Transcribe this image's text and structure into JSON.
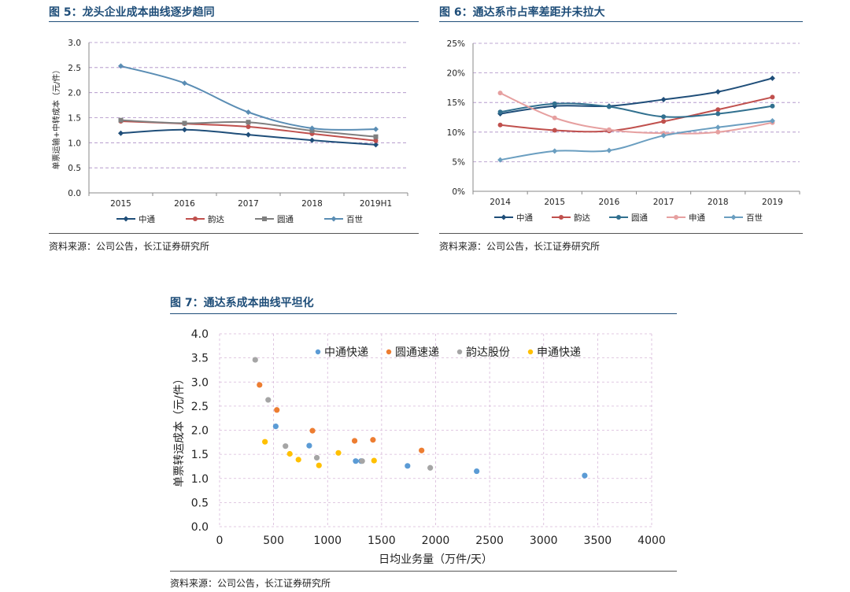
{
  "chart_data": [
    {
      "type": "line",
      "title": "图 5：龙头企业成本曲线逐步趋同",
      "ylabel": "单票运输+中转成本（元/件）",
      "categories": [
        "2015",
        "2016",
        "2017",
        "2018",
        "2019H1"
      ],
      "ylim": [
        0,
        3.0
      ],
      "yticks": [
        "0.0",
        "0.5",
        "1.0",
        "1.5",
        "2.0",
        "2.5",
        "3.0"
      ],
      "ytick_values": [
        0,
        0.5,
        1.0,
        1.5,
        2.0,
        2.5,
        3.0
      ],
      "legend_position": "bottom",
      "series": [
        {
          "name": "中通",
          "color": "#1f4e79",
          "marker": "diamond",
          "values": [
            1.19,
            1.26,
            1.16,
            1.05,
            0.96
          ]
        },
        {
          "name": "韵达",
          "color": "#c0504d",
          "marker": "circle",
          "values": [
            1.43,
            1.38,
            1.32,
            1.18,
            1.04
          ]
        },
        {
          "name": "圆通",
          "color": "#7f7f7f",
          "marker": "square",
          "values": [
            1.45,
            1.39,
            1.41,
            1.24,
            1.12
          ]
        },
        {
          "name": "百世",
          "color": "#5a8db4",
          "marker": "diamond",
          "values": [
            2.53,
            2.19,
            1.61,
            1.29,
            1.27
          ]
        }
      ],
      "source": "资料来源：公司公告，长江证券研究所"
    },
    {
      "type": "line",
      "title": "图 6：通达系市占率差距并未拉大",
      "categories": [
        "2014",
        "2015",
        "2016",
        "2017",
        "2018",
        "2019"
      ],
      "ylim": [
        0,
        25
      ],
      "yticks": [
        "0%",
        "5%",
        "10%",
        "15%",
        "20%",
        "25%"
      ],
      "ytick_values": [
        0,
        5,
        10,
        15,
        20,
        25
      ],
      "legend_position": "bottom",
      "series": [
        {
          "name": "中通",
          "color": "#1f4e79",
          "marker": "diamond",
          "values": [
            13.1,
            14.4,
            14.4,
            15.5,
            16.8,
            19.1
          ]
        },
        {
          "name": "韵达",
          "color": "#c0504d",
          "marker": "circle",
          "values": [
            11.2,
            10.3,
            10.2,
            11.8,
            13.8,
            15.9
          ]
        },
        {
          "name": "圆通",
          "color": "#31708f",
          "marker": "circle",
          "values": [
            13.4,
            14.8,
            14.3,
            12.6,
            13.1,
            14.4
          ]
        },
        {
          "name": "申通",
          "color": "#e6a0a0",
          "marker": "circle",
          "values": [
            16.6,
            12.4,
            10.4,
            9.8,
            10.0,
            11.6
          ]
        },
        {
          "name": "百世",
          "color": "#6a9ec0",
          "marker": "diamond",
          "values": [
            5.3,
            6.8,
            6.9,
            9.4,
            10.8,
            11.9
          ]
        }
      ],
      "source": "资料来源：公司公告，长江证券研究所"
    },
    {
      "type": "scatter",
      "title": "图 7：通达系成本曲线平坦化",
      "xlabel": "日均业务量（万件/天）",
      "ylabel": "单票转运成本（元/件）",
      "xlim": [
        0,
        4000
      ],
      "ylim": [
        0,
        4.0
      ],
      "xticks": [
        "0",
        "500",
        "1000",
        "1500",
        "2000",
        "2500",
        "3000",
        "3500",
        "4000"
      ],
      "xtick_values": [
        0,
        500,
        1000,
        1500,
        2000,
        2500,
        3000,
        3500,
        4000
      ],
      "yticks": [
        "0.0",
        "0.5",
        "1.0",
        "1.5",
        "2.0",
        "2.5",
        "3.0",
        "3.5",
        "4.0"
      ],
      "ytick_values": [
        0,
        0.5,
        1.0,
        1.5,
        2.0,
        2.5,
        3.0,
        3.5,
        4.0
      ],
      "grid": true,
      "legend_position": "top-center",
      "series": [
        {
          "name": "中通快递",
          "color": "#5b9bd5",
          "points": [
            [
              520,
              2.08
            ],
            [
              830,
              1.68
            ],
            [
              1260,
              1.36
            ],
            [
              1310,
              1.36
            ],
            [
              1740,
              1.26
            ],
            [
              2380,
              1.15
            ],
            [
              3380,
              1.06
            ]
          ]
        },
        {
          "name": "圆通速递",
          "color": "#ed7d31",
          "points": [
            [
              370,
              2.94
            ],
            [
              530,
              2.42
            ],
            [
              860,
              1.99
            ],
            [
              1250,
              1.78
            ],
            [
              1420,
              1.8
            ],
            [
              1870,
              1.58
            ]
          ]
        },
        {
          "name": "韵达股份",
          "color": "#a5a5a5",
          "points": [
            [
              330,
              3.46
            ],
            [
              450,
              2.63
            ],
            [
              610,
              1.67
            ],
            [
              900,
              1.43
            ],
            [
              1320,
              1.36
            ],
            [
              1950,
              1.22
            ]
          ]
        },
        {
          "name": "申通快递",
          "color": "#ffc000",
          "points": [
            [
              420,
              1.76
            ],
            [
              650,
              1.51
            ],
            [
              730,
              1.39
            ],
            [
              920,
              1.27
            ],
            [
              1100,
              1.53
            ],
            [
              1430,
              1.37
            ]
          ]
        }
      ],
      "source": "资料来源：公司公告，长江证券研究所"
    }
  ]
}
